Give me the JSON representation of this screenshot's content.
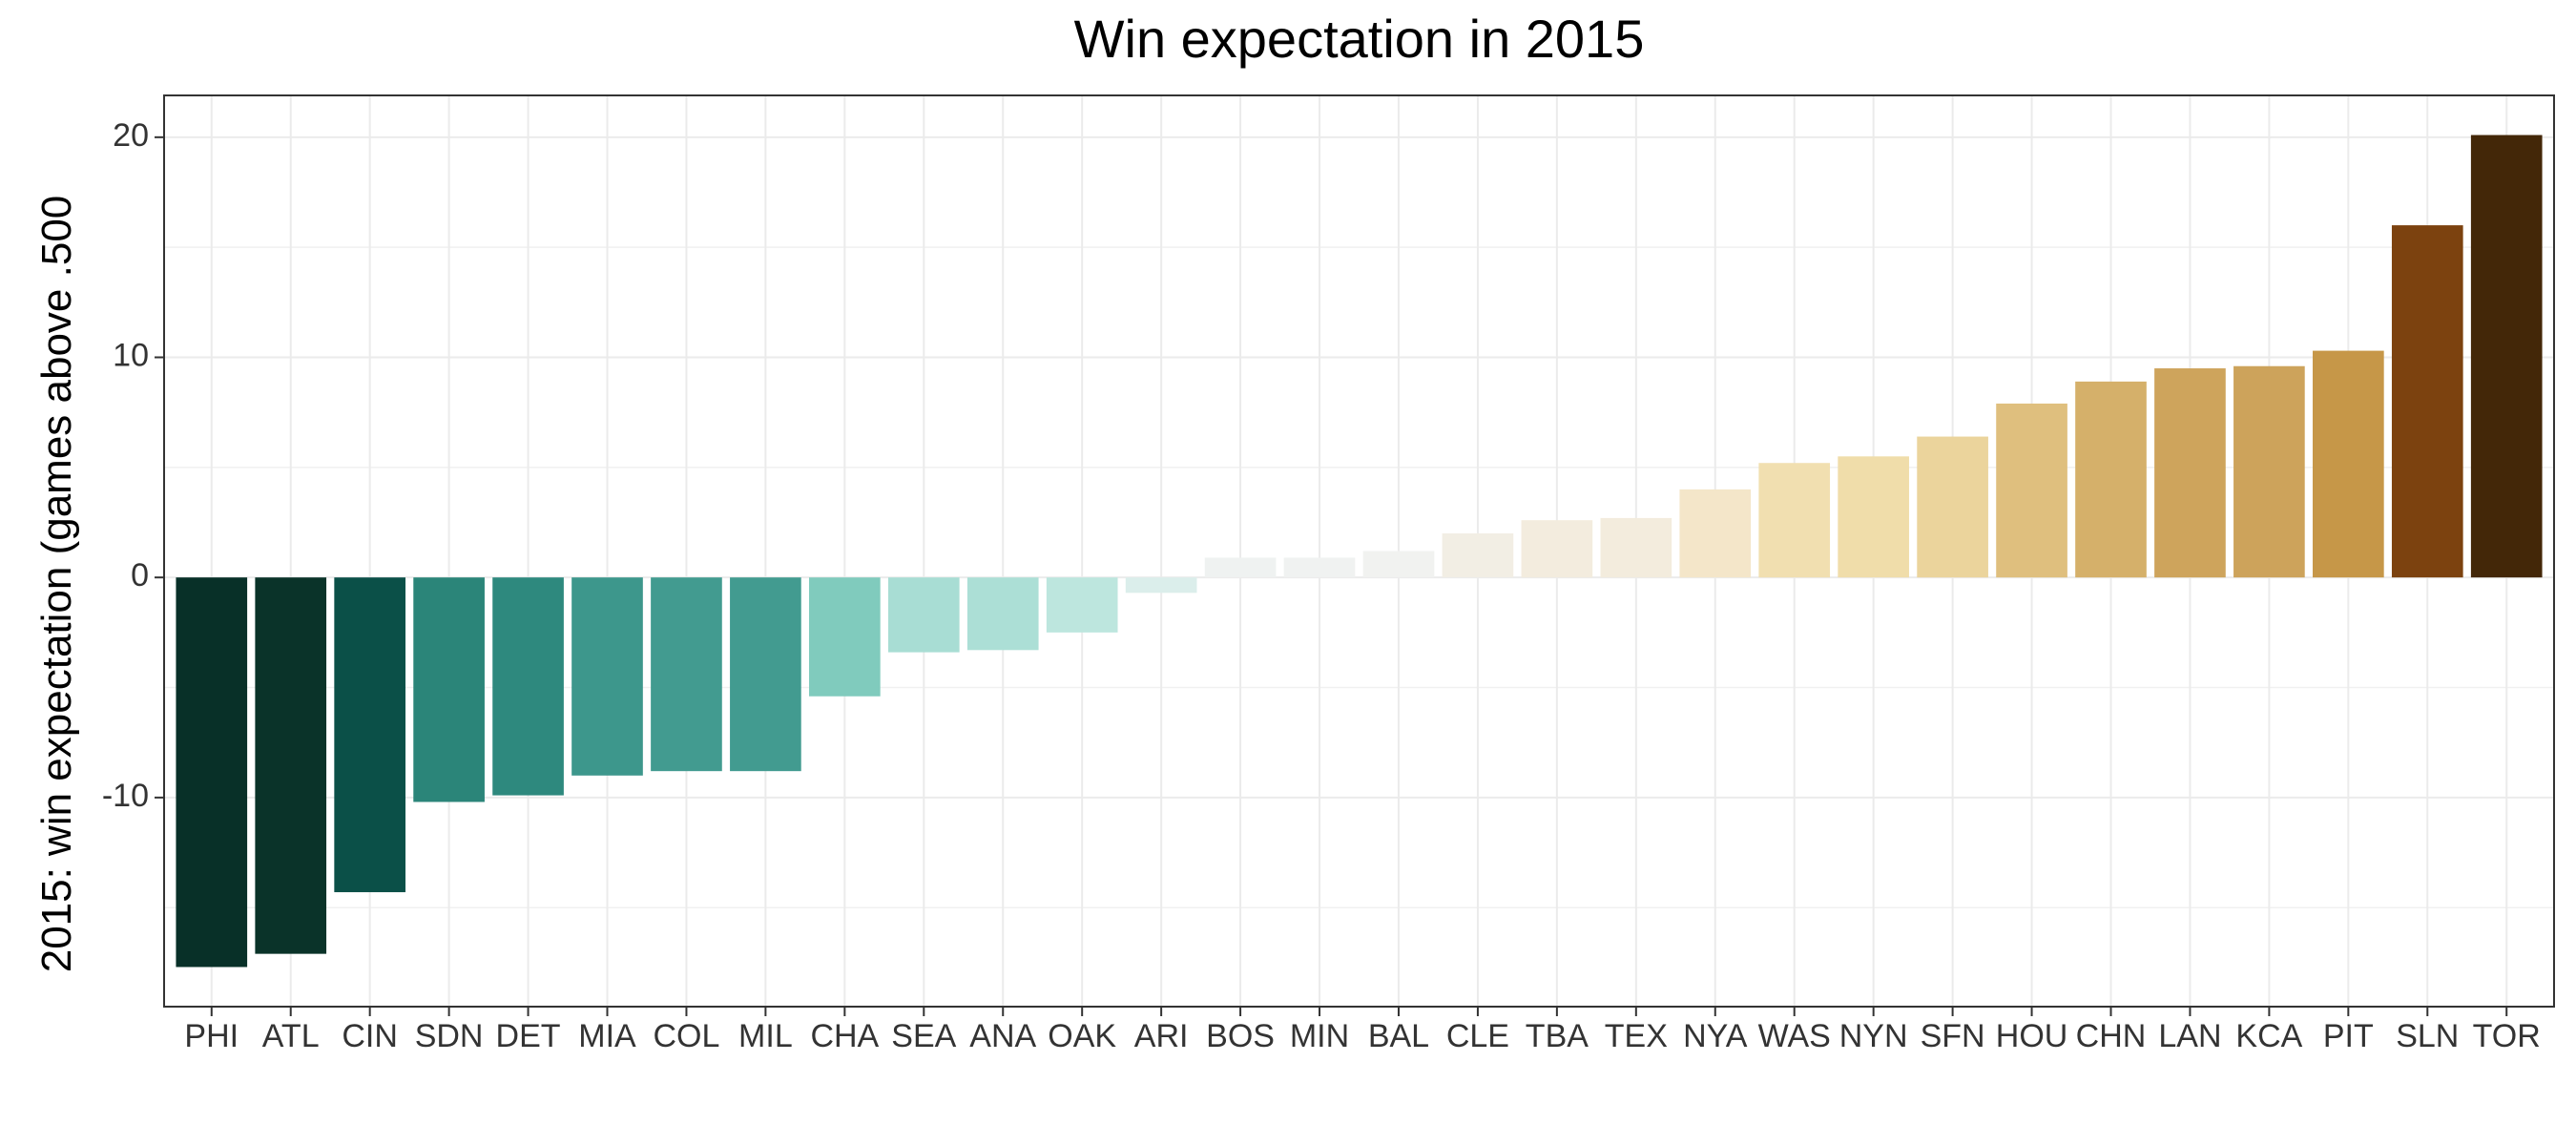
{
  "chart_data": {
    "type": "bar",
    "title": "Win expectation in 2015",
    "xlabel": "",
    "ylabel": "2015: win expectation (games above .500",
    "ylim": [
      -19.5,
      21.9
    ],
    "yticks": [
      -10,
      0,
      10,
      20
    ],
    "yticklabels": [
      "-10",
      "0",
      "10",
      "20"
    ],
    "grid": true,
    "legend": "none",
    "categories": [
      "PHI",
      "ATL",
      "CIN",
      "SDN",
      "DET",
      "MIA",
      "COL",
      "MIL",
      "CHA",
      "SEA",
      "ANA",
      "OAK",
      "ARI",
      "BOS",
      "MIN",
      "BAL",
      "CLE",
      "TBA",
      "TEX",
      "NYA",
      "WAS",
      "NYN",
      "SFN",
      "HOU",
      "CHN",
      "LAN",
      "KCA",
      "PIT",
      "SLN",
      "TOR"
    ],
    "values": [
      -17.7,
      -17.1,
      -14.3,
      -10.2,
      -9.9,
      -9.0,
      -8.8,
      -8.8,
      -5.4,
      -3.4,
      -3.3,
      -2.5,
      -0.7,
      0.9,
      0.9,
      1.2,
      2.0,
      2.6,
      2.7,
      4.0,
      5.2,
      5.5,
      6.4,
      7.9,
      8.9,
      9.5,
      9.6,
      10.3,
      16.0,
      20.1
    ],
    "colors": [
      "#083028",
      "#0a3329",
      "#0b5048",
      "#2b8579",
      "#2e897e",
      "#3d978c",
      "#429b90",
      "#429b90",
      "#80cbbd",
      "#a8ddd4",
      "#acdfd6",
      "#bde6de",
      "#dbeeeb",
      "#eff2f1",
      "#f0f2f1",
      "#f1f2f0",
      "#f2eee4",
      "#f3ecde",
      "#f3ecdd",
      "#f4e6c9",
      "#f1dfb0",
      "#f0ddaa",
      "#ebd49c",
      "#dfbf7e",
      "#d5b06a",
      "#cea45c",
      "#cda35b",
      "#c69748",
      "#7c420f",
      "#432708"
    ]
  }
}
